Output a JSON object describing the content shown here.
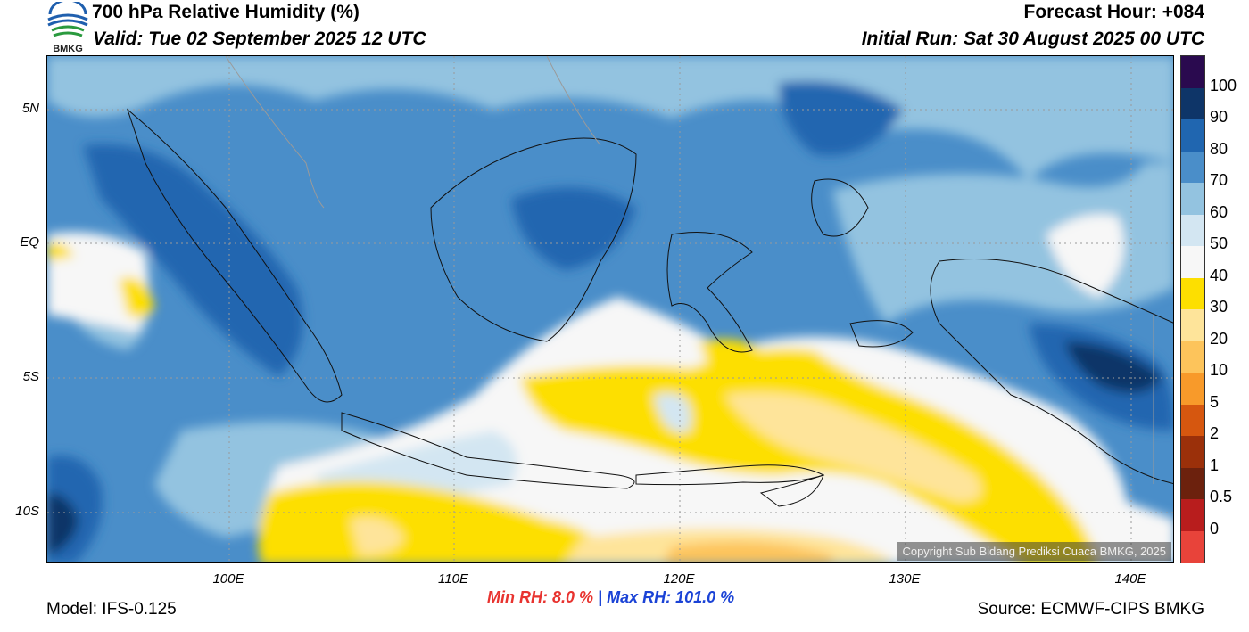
{
  "header": {
    "title": "700 hPa Relative Humidity (%)",
    "valid": "Valid: Tue 02 September 2025 12 UTC",
    "forecast_hour": "Forecast Hour: +084",
    "initial_run": "Initial Run: Sat 30 August 2025 00 UTC",
    "logo_text": "BMKG"
  },
  "axes": {
    "lat_labels": [
      "5N",
      "EQ",
      "5S",
      "10S"
    ],
    "lon_labels": [
      "100E",
      "110E",
      "120E",
      "130E",
      "140E"
    ]
  },
  "colorbar": {
    "labels": [
      "100",
      "90",
      "80",
      "70",
      "60",
      "50",
      "40",
      "30",
      "20",
      "10",
      "5",
      "2",
      "1",
      "0.5",
      "0"
    ],
    "colors": [
      "#2a0a4f",
      "#0e3568",
      "#2066b0",
      "#4a8ec9",
      "#93c3e0",
      "#d3e6f2",
      "#f7f7f7",
      "#fddf00",
      "#fee49a",
      "#fdc45b",
      "#f89a2a",
      "#d6570f",
      "#9b300a",
      "#6c210d",
      "#b81d1d",
      "#e8433a"
    ]
  },
  "stats": {
    "min_label": "Min RH:",
    "min_value": "8.0 %",
    "separator": "|",
    "max_label": "Max RH:",
    "max_value": "101.0 %"
  },
  "footer": {
    "model": "Model: IFS-0.125",
    "source": "Source: ECMWF-CIPS BMKG",
    "copyright": "Copyright Sub Bidang Prediksi Cuaca BMKG, 2025"
  }
}
